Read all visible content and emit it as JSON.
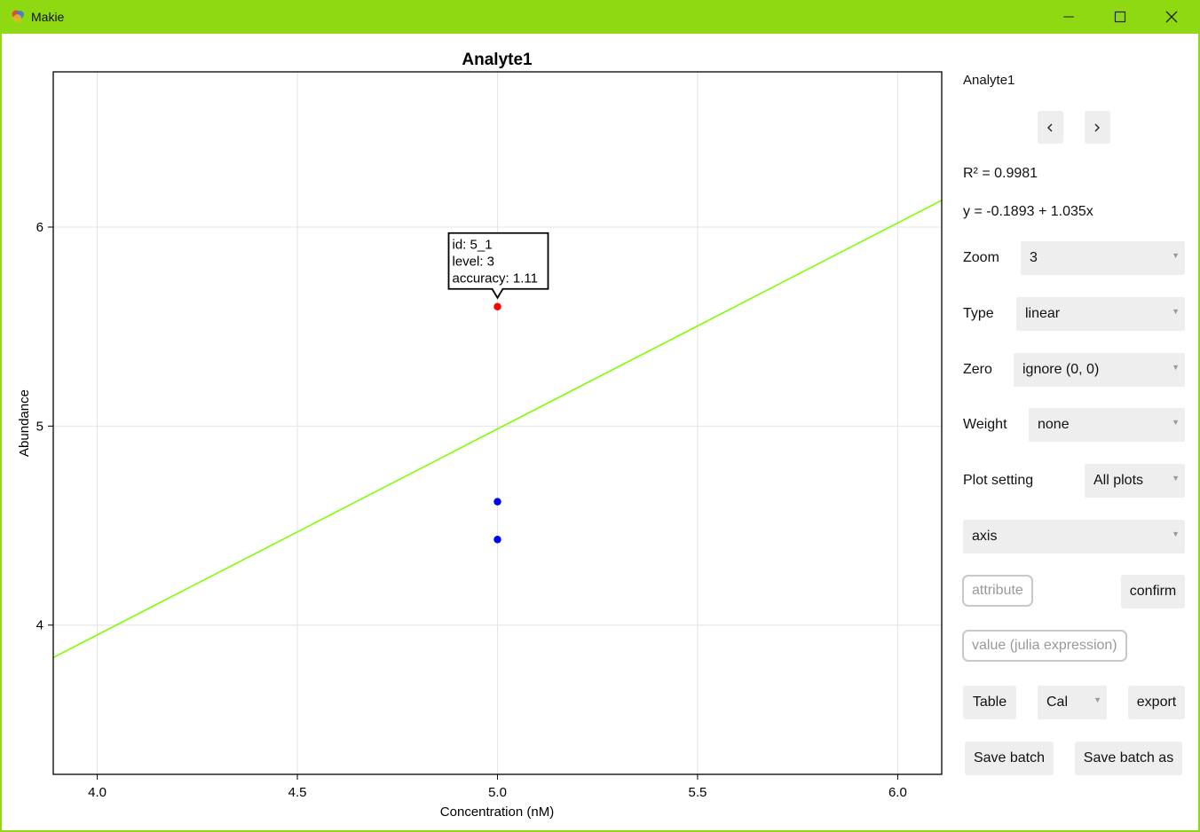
{
  "window": {
    "title": "Makie"
  },
  "chart_data": {
    "type": "scatter",
    "title": "Analyte1",
    "xlabel": "Concentration (nM)",
    "ylabel": "Abundance",
    "xlim": [
      3.89,
      6.11
    ],
    "ylim": [
      3.25,
      6.78
    ],
    "xticks": [
      4.0,
      4.5,
      5.0,
      5.5,
      6.0
    ],
    "xtick_labels": [
      "4.0",
      "4.5",
      "5.0",
      "5.5",
      "6.0"
    ],
    "yticks": [
      4,
      5,
      6
    ],
    "ytick_labels": [
      "4",
      "5",
      "6"
    ],
    "grid": true,
    "series": [
      {
        "kind": "points",
        "color": "#0000ff",
        "points": [
          [
            5.0,
            4.62
          ],
          [
            5.0,
            4.43
          ]
        ]
      },
      {
        "kind": "points",
        "color": "#ff0000",
        "points": [
          [
            5.0,
            5.6
          ]
        ]
      },
      {
        "kind": "line",
        "color": "#7fff00",
        "intercept": -0.1893,
        "slope": 1.035
      }
    ],
    "tooltip": {
      "x": 5.0,
      "y": 5.6,
      "lines": [
        "id: 5_1",
        "level: 3",
        "accuracy: 1.11"
      ]
    }
  },
  "panel": {
    "analyte": "Analyte1",
    "r2": "R² = 0.9981",
    "equation": "y = -0.1893 + 1.035x",
    "zoom": {
      "label": "Zoom",
      "value": "3"
    },
    "type": {
      "label": "Type",
      "value": "linear"
    },
    "zero": {
      "label": "Zero",
      "value": "ignore (0, 0)"
    },
    "weight": {
      "label": "Weight",
      "value": "none"
    },
    "plot_setting": {
      "label": "Plot setting",
      "value": "All plots"
    },
    "axis_select": "axis",
    "attribute_placeholder": "attribute",
    "confirm_label": "confirm",
    "value_placeholder": "value (julia expression)",
    "table_label": "Table",
    "cal_value": "Cal",
    "export_label": "export",
    "save_batch_label": "Save batch",
    "save_batch_as_label": "Save batch as",
    "dropdown_arrow": "▼"
  },
  "colors": {
    "titlebar": "#8fd912",
    "fit_line": "#7fff00",
    "point_selected": "#ff0000",
    "point_normal": "#0000ff"
  }
}
